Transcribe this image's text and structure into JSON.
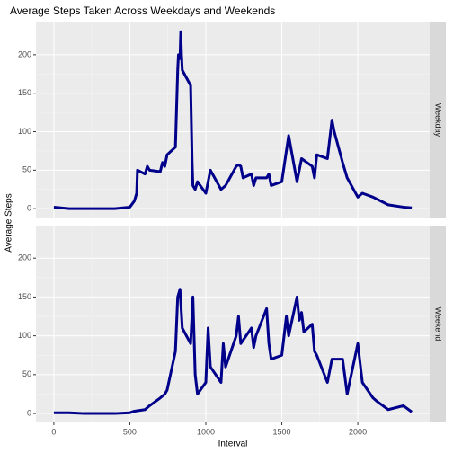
{
  "chart_data": {
    "type": "line",
    "title": "Average Steps Taken Across Weekdays and Weekends",
    "x_label": "Interval",
    "y_label": "Average Steps",
    "xlim": [
      -117.75,
      2472.75
    ],
    "xticks": [
      0,
      500,
      1000,
      1500,
      2000
    ],
    "ylim": [
      -11.5,
      241.9
    ],
    "yticks": [
      0,
      50,
      100,
      150,
      200
    ],
    "grid": true,
    "facets": "rows",
    "series": [
      {
        "name": "Weekday",
        "color": "#00008b",
        "x": [
          0,
          100,
          200,
          300,
          400,
          500,
          530,
          545,
          550,
          600,
          615,
          630,
          700,
          715,
          730,
          745,
          800,
          815,
          820,
          830,
          835,
          840,
          845,
          900,
          910,
          915,
          930,
          945,
          1000,
          1030,
          1100,
          1130,
          1200,
          1215,
          1230,
          1245,
          1300,
          1315,
          1330,
          1400,
          1415,
          1430,
          1500,
          1545,
          1600,
          1630,
          1700,
          1715,
          1730,
          1800,
          1830,
          1845,
          1900,
          1930,
          2000,
          2030,
          2100,
          2200,
          2300,
          2355
        ],
        "values": [
          2,
          0,
          0,
          0,
          0,
          2,
          10,
          20,
          50,
          45,
          55,
          50,
          48,
          60,
          55,
          70,
          80,
          180,
          200,
          195,
          230,
          200,
          180,
          160,
          60,
          30,
          25,
          35,
          20,
          50,
          25,
          30,
          55,
          57,
          55,
          40,
          45,
          30,
          40,
          40,
          45,
          30,
          35,
          95,
          35,
          65,
          55,
          40,
          70,
          65,
          115,
          100,
          60,
          40,
          15,
          20,
          15,
          5,
          2,
          1
        ]
      },
      {
        "name": "Weekend",
        "color": "#00008b",
        "x": [
          0,
          100,
          200,
          300,
          400,
          500,
          530,
          600,
          630,
          700,
          730,
          745,
          800,
          815,
          830,
          845,
          900,
          915,
          930,
          945,
          1000,
          1015,
          1030,
          1100,
          1115,
          1130,
          1200,
          1215,
          1230,
          1300,
          1315,
          1330,
          1400,
          1415,
          1430,
          1500,
          1530,
          1545,
          1600,
          1615,
          1630,
          1645,
          1700,
          1715,
          1730,
          1800,
          1830,
          1900,
          1930,
          2000,
          2030,
          2100,
          2130,
          2200,
          2300,
          2355
        ],
        "values": [
          1,
          1,
          0,
          0,
          0,
          1,
          3,
          5,
          10,
          20,
          25,
          30,
          80,
          150,
          160,
          110,
          90,
          150,
          50,
          25,
          40,
          110,
          60,
          40,
          90,
          60,
          100,
          125,
          90,
          110,
          85,
          100,
          135,
          90,
          70,
          75,
          125,
          100,
          150,
          120,
          130,
          105,
          115,
          80,
          75,
          40,
          70,
          70,
          25,
          90,
          40,
          20,
          15,
          5,
          10,
          2
        ]
      }
    ]
  }
}
